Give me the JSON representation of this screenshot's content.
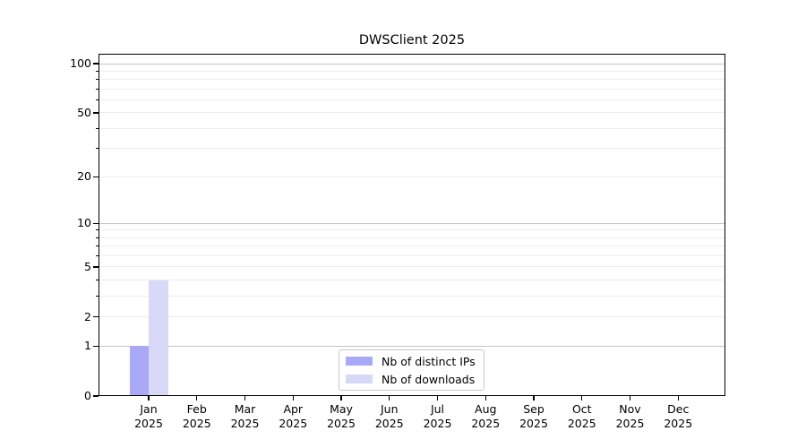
{
  "chart_data": {
    "type": "bar",
    "title": "DWSClient 2025",
    "x_tick_months": [
      "Jan",
      "Feb",
      "Mar",
      "Apr",
      "May",
      "Jun",
      "Jul",
      "Aug",
      "Sep",
      "Oct",
      "Nov",
      "Dec"
    ],
    "x_tick_year": "2025",
    "series": [
      {
        "name": "Nb of distinct IPs",
        "color": "#a9a9f7",
        "values": [
          1,
          0,
          0,
          0,
          0,
          0,
          0,
          0,
          0,
          0,
          0,
          0
        ]
      },
      {
        "name": "Nb of downloads",
        "color": "#d8d8f8",
        "values": [
          4,
          0,
          0,
          0,
          0,
          0,
          0,
          0,
          0,
          0,
          0,
          0
        ]
      }
    ],
    "y_scale": "log1p",
    "ylim": [
      0,
      100
    ],
    "y_ticks_labeled": [
      0,
      1,
      2,
      5,
      10,
      20,
      50,
      100
    ],
    "y_major_gridlines": [
      1,
      10,
      100
    ],
    "y_minor_gridlines": [
      2,
      3,
      4,
      5,
      6,
      7,
      8,
      9,
      20,
      30,
      40,
      50,
      60,
      70,
      80,
      90
    ],
    "grid": "horizontal",
    "legend_position": "lower center",
    "colors": {
      "major_grid": "#c6c6c6",
      "minor_grid": "#ececec",
      "spine": "#000000",
      "background": "#ffffff"
    }
  }
}
